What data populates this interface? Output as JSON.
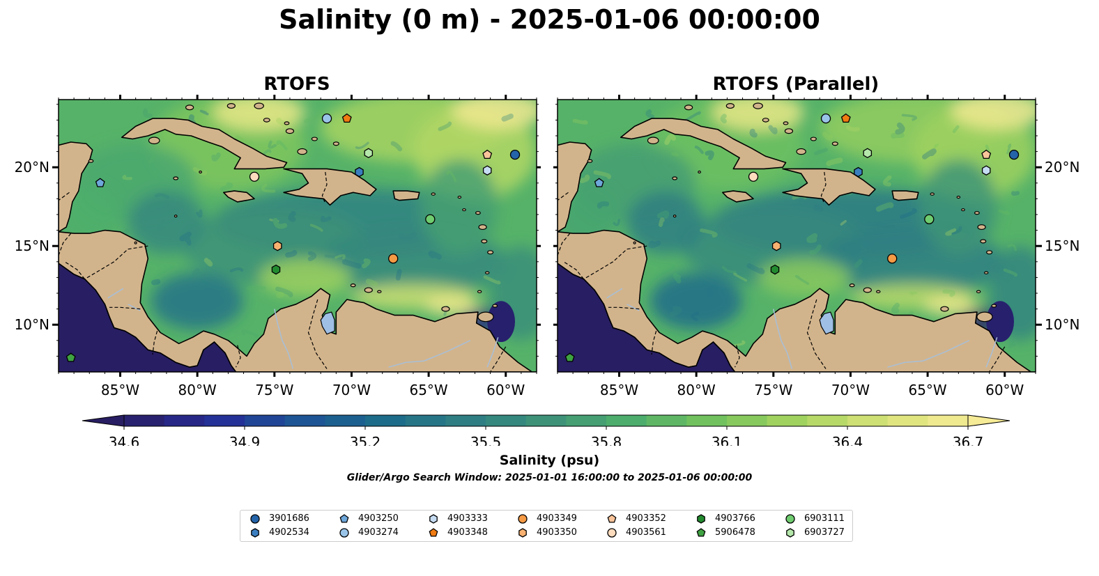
{
  "title": "Salinity (0 m) - 2025-01-06 00:00:00",
  "panels": [
    {
      "title": "RTOFS"
    },
    {
      "title": "RTOFS (Parallel)"
    }
  ],
  "map": {
    "lon_range": [
      -89,
      -58
    ],
    "lat_range": [
      7,
      24.3
    ],
    "lon_ticks": [
      -85,
      -80,
      -75,
      -70,
      -65,
      -60
    ],
    "lon_tick_labels": [
      "85°W",
      "80°W",
      "75°W",
      "70°W",
      "65°W",
      "60°W"
    ],
    "lat_ticks": [
      10,
      15,
      20
    ],
    "lat_tick_labels": [
      "10°N",
      "15°N",
      "20°N"
    ],
    "land_color": "#d2b48c",
    "water_body_color": "#9fbfe5"
  },
  "colorbar": {
    "min": 34.6,
    "max": 36.7,
    "ticks": [
      34.6,
      34.9,
      35.2,
      35.5,
      35.8,
      36.1,
      36.4,
      36.7
    ],
    "tick_labels": [
      "34.6",
      "34.9",
      "35.2",
      "35.5",
      "35.8",
      "36.1",
      "36.4",
      "36.7"
    ],
    "colormap_stops": [
      "#281e63",
      "#252a96",
      "#1e5196",
      "#1b6a8a",
      "#2d7d84",
      "#3d9278",
      "#4eae6b",
      "#75c35d",
      "#a7d460",
      "#d7e277",
      "#f6eb96"
    ],
    "extend": "both",
    "label": "Salinity (psu)"
  },
  "search_window": "Glider/Argo Search Window: 2025-01-01 16:00:00 to 2025-01-06 00:00:00",
  "platforms": [
    {
      "id": "3901686",
      "marker": "circle",
      "color": "#2464a8",
      "lon": -59.4,
      "lat": 20.8
    },
    {
      "id": "4902534",
      "marker": "hexagon",
      "color": "#3a7ec0",
      "lon": -69.5,
      "lat": 19.7
    },
    {
      "id": "4903250",
      "marker": "pentagon",
      "color": "#6ea7da",
      "lon": -86.3,
      "lat": 19.0
    },
    {
      "id": "4903274",
      "marker": "circle",
      "color": "#99c4e8",
      "lon": -71.6,
      "lat": 23.1
    },
    {
      "id": "4903333",
      "marker": "hexagon",
      "color": "#c6dcf2",
      "lon": -61.2,
      "lat": 19.8
    },
    {
      "id": "4903348",
      "marker": "pentagon",
      "color": "#f07b12",
      "lon": -70.3,
      "lat": 23.1
    },
    {
      "id": "4903349",
      "marker": "circle",
      "color": "#f59a45",
      "lon": -67.3,
      "lat": 14.2
    },
    {
      "id": "4903350",
      "marker": "hexagon",
      "color": "#f8b170",
      "lon": -74.8,
      "lat": 15.0
    },
    {
      "id": "4903352",
      "marker": "pentagon",
      "color": "#fac49a",
      "lon": -61.2,
      "lat": 20.8
    },
    {
      "id": "4903561",
      "marker": "circle",
      "color": "#fddbbd",
      "lon": -76.3,
      "lat": 19.4
    },
    {
      "id": "4903766",
      "marker": "hexagon",
      "color": "#238b2f",
      "lon": -74.9,
      "lat": 13.5
    },
    {
      "id": "5906478",
      "marker": "pentagon",
      "color": "#3fa242",
      "lon": -88.2,
      "lat": 7.9
    },
    {
      "id": "6903111",
      "marker": "circle",
      "color": "#6fcc6f",
      "lon": -64.9,
      "lat": 16.7
    },
    {
      "id": "6903727",
      "marker": "hexagon",
      "color": "#b5e7ab",
      "lon": -68.9,
      "lat": 20.9
    }
  ]
}
